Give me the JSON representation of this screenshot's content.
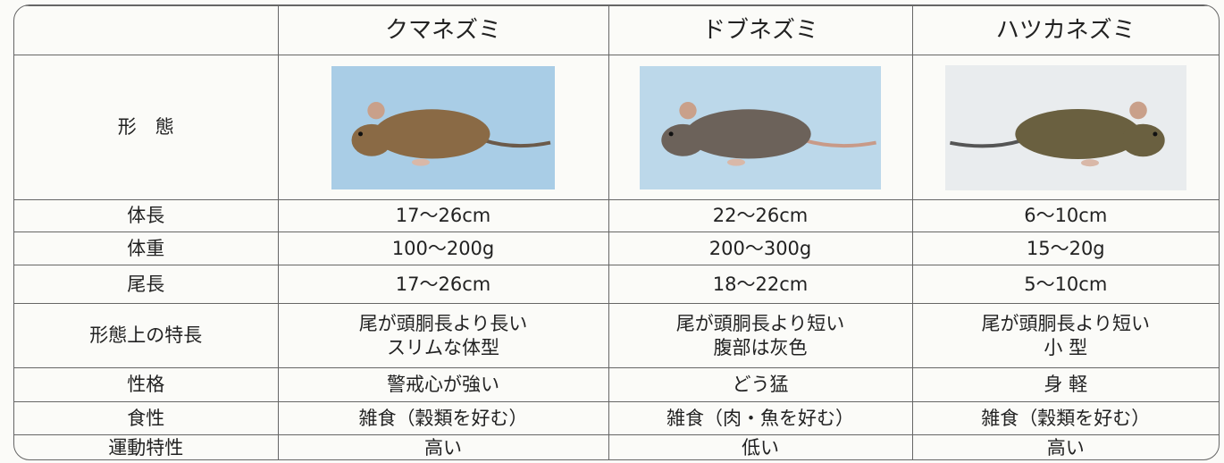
{
  "table": {
    "header": [
      "クマネズミ",
      "ドブネズミ",
      "ハツカネズミ"
    ],
    "image_row_label": "形　態",
    "rows": [
      {
        "label": "体長",
        "values": [
          [
            "17～26cm"
          ],
          [
            "22～26cm"
          ],
          [
            "6～10cm"
          ]
        ]
      },
      {
        "label": "体重",
        "values": [
          [
            "100～200g"
          ],
          [
            "200～300g"
          ],
          [
            "15～20g"
          ]
        ]
      },
      {
        "label": "尾長",
        "values": [
          [
            "17～26cm"
          ],
          [
            "18～22cm"
          ],
          [
            "5～10cm"
          ]
        ]
      },
      {
        "label": "形態上の特長",
        "values": [
          [
            "尾が頭胴長より長い",
            "スリムな体型"
          ],
          [
            "尾が頭胴長より短い",
            "腹部は灰色"
          ],
          [
            "尾が頭胴長より短い",
            "小 型"
          ]
        ]
      },
      {
        "label": "性格",
        "values": [
          [
            "警戒心が強い"
          ],
          [
            "どう猛"
          ],
          [
            "身 軽"
          ]
        ]
      },
      {
        "label": "食性",
        "values": [
          [
            "雑食（穀類を好む）"
          ],
          [
            "雑食（肉・魚を好む）"
          ],
          [
            "雑食（穀類を好む）"
          ]
        ]
      },
      {
        "label": "運動特性",
        "values": [
          [
            "高い"
          ],
          [
            "低い"
          ],
          [
            "高い"
          ]
        ]
      }
    ]
  }
}
